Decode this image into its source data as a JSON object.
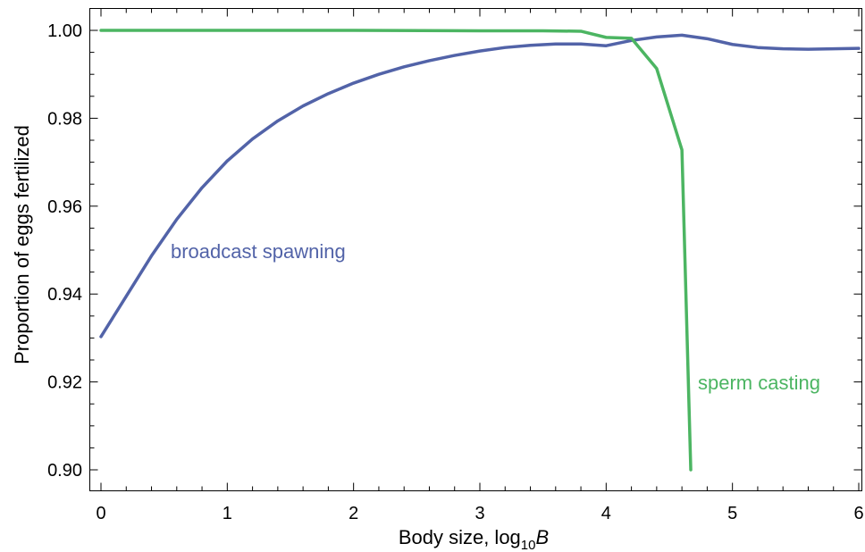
{
  "chart_data": {
    "type": "line",
    "title": "",
    "xlabel": {
      "prefix": "Body size, log",
      "subscript": "10",
      "variable": "B"
    },
    "ylabel": "Proportion of eggs fertilized",
    "xlim": [
      0,
      6
    ],
    "ylim": [
      0.8975,
      1.005
    ],
    "x_ticks": [
      0,
      1,
      2,
      3,
      4,
      5,
      6
    ],
    "x_tick_labels": [
      "0",
      "1",
      "2",
      "3",
      "4",
      "5",
      "6"
    ],
    "y_ticks": [
      0.9,
      0.92,
      0.94,
      0.96,
      0.98,
      1.0
    ],
    "y_tick_labels": [
      "0.90",
      "0.92",
      "0.94",
      "0.96",
      "0.98",
      "1.00"
    ],
    "grid": false,
    "series": [
      {
        "name": "broadcast spawning",
        "color": "#5263A8",
        "x": [
          0,
          0.2,
          0.4,
          0.6,
          0.8,
          1.0,
          1.2,
          1.4,
          1.6,
          1.8,
          2.0,
          2.2,
          2.4,
          2.6,
          2.8,
          3.0,
          3.2,
          3.4,
          3.6,
          3.8,
          4.0,
          4.2,
          4.4,
          4.6,
          4.8,
          5.0,
          5.2,
          5.4,
          5.6,
          5.8,
          6.0
        ],
        "y": [
          0.9303,
          0.9395,
          0.9487,
          0.957,
          0.9642,
          0.9703,
          0.9753,
          0.9794,
          0.9828,
          0.9856,
          0.988,
          0.99,
          0.9917,
          0.9931,
          0.9943,
          0.9953,
          0.9961,
          0.9966,
          0.9969,
          0.9969,
          0.9965,
          0.9977,
          0.9985,
          0.9989,
          0.9981,
          0.9968,
          0.9961,
          0.9958,
          0.9957,
          0.9958,
          0.9959
        ]
      },
      {
        "name": "sperm casting",
        "color": "#4CB562",
        "x": [
          0,
          1.0,
          2.0,
          3.0,
          3.5,
          3.8,
          4.0,
          4.2,
          4.4,
          4.6,
          4.67
        ],
        "y": [
          1.0,
          1.0,
          1.0,
          0.9999,
          0.9999,
          0.9998,
          0.9984,
          0.9982,
          0.9913,
          0.9728,
          0.9
        ]
      }
    ]
  }
}
